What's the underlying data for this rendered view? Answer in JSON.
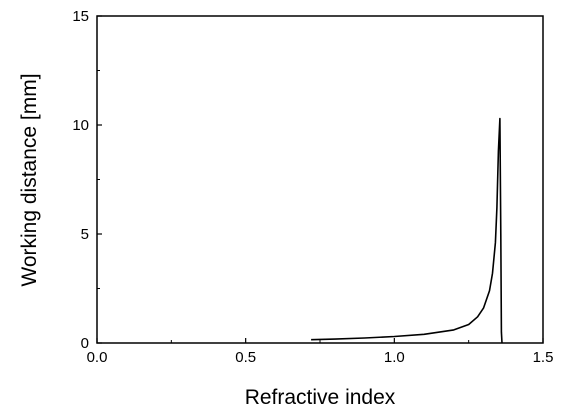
{
  "chart_data": {
    "type": "line",
    "title": "",
    "xlabel": "Refractive index",
    "ylabel": "Working distance [mm]",
    "xlim": [
      0.0,
      1.5
    ],
    "ylim": [
      0,
      15
    ],
    "x_ticks": [
      "0.0",
      "0.5",
      "1.0",
      "1.5"
    ],
    "y_ticks": [
      "0",
      "5",
      "10",
      "15"
    ],
    "grid": false,
    "legend": "none",
    "series": [
      {
        "color": "#000000",
        "x": [
          0.72,
          0.8,
          0.9,
          1.0,
          1.1,
          1.2,
          1.25,
          1.28,
          1.3,
          1.32,
          1.33,
          1.34,
          1.345,
          1.35,
          1.355,
          1.358,
          1.36,
          1.362
        ],
        "y": [
          0.15,
          0.18,
          0.23,
          0.3,
          0.4,
          0.6,
          0.85,
          1.2,
          1.6,
          2.4,
          3.2,
          4.6,
          6.2,
          8.8,
          10.3,
          5.0,
          0.5,
          0.0
        ]
      }
    ]
  }
}
